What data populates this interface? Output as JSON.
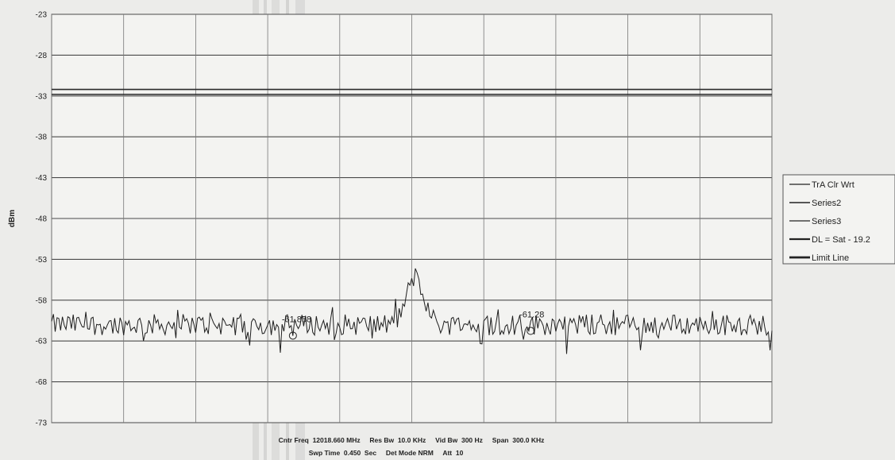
{
  "chart_data": {
    "type": "line",
    "ylabel": "dBm",
    "ylim": [
      -73,
      -23
    ],
    "yticks": [
      "-23",
      "-28",
      "-33",
      "-38",
      "-43",
      "-48",
      "-53",
      "-58",
      "-63",
      "-68",
      "-73"
    ],
    "x_divisions": 10,
    "grid": true,
    "legend_position": "right",
    "legend": [
      "TrA Clr Wrt",
      "Series2",
      "Series3",
      "DL = Sat - 19.2",
      "Limit Line"
    ],
    "horizontal_lines": [
      {
        "name": "DL = Sat - 19.2",
        "y": -32.2
      },
      {
        "name": "Limit Line",
        "y": -32.8
      }
    ],
    "trace": {
      "name": "TrA Clr Wrt",
      "points": 401,
      "noise_floor": -61,
      "peak": {
        "x_fraction": 0.505,
        "y": -55.2
      }
    },
    "markers": [
      {
        "label": "-61.858",
        "x_fraction": 0.335,
        "y": -61.858
      },
      {
        "label": "-61.28",
        "x_fraction": 0.665,
        "y": -61.28
      }
    ],
    "footer": {
      "line1": "Cntr Freq  12018.660 MHz     Res Bw  10.0 KHz     Vid Bw  300 Hz     Span  300.0 KHz",
      "line2": "Swp Time  0.450  Sec     Det Mode NRM     Att  10"
    }
  }
}
